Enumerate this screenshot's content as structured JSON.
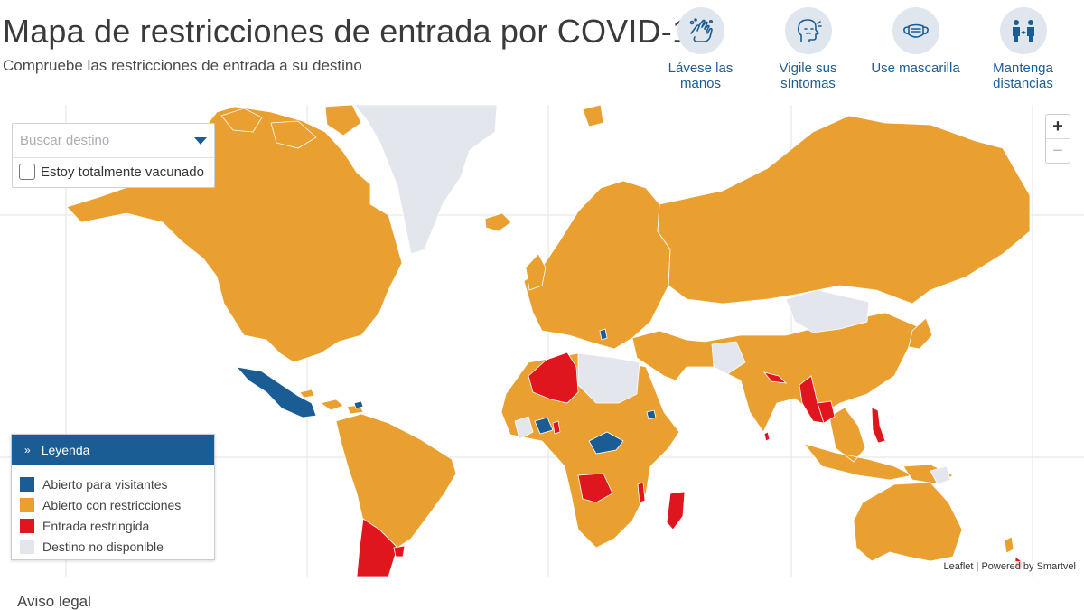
{
  "header": {
    "title": "Mapa de restricciones de entrada por COVID-19",
    "subtitle": "Compruebe las restricciones de entrada a su destino"
  },
  "tips": [
    {
      "icon": "hand-wash-icon",
      "label": "Lávese las manos"
    },
    {
      "icon": "symptoms-icon",
      "label": "Vigile sus síntomas"
    },
    {
      "icon": "mask-icon",
      "label": "Use mascarilla"
    },
    {
      "icon": "distance-icon",
      "label": "Mantenga distancias"
    }
  ],
  "search": {
    "placeholder": "Buscar destino",
    "value": "",
    "vaccinated_label": "Estoy totalmente vacunado",
    "vaccinated_checked": false
  },
  "zoom": {
    "in_label": "+",
    "out_label": "−"
  },
  "legend": {
    "title": "Leyenda",
    "items": [
      {
        "label": "Abierto para visitantes",
        "color": "#1a5d95"
      },
      {
        "label": "Abierto con restricciones",
        "color": "#e9a030"
      },
      {
        "label": "Entrada restringida",
        "color": "#e0161e"
      },
      {
        "label": "Destino no disponible",
        "color": "#e3e6ec"
      }
    ]
  },
  "attribution": "Leaflet | Powered by Smartvel",
  "footer": {
    "legal_link": "Aviso legal"
  },
  "colors": {
    "open": "#1a5d95",
    "restrictions": "#e9a030",
    "restricted": "#e0161e",
    "unavailable": "#e3e6ec",
    "accent": "#1a5d95"
  }
}
